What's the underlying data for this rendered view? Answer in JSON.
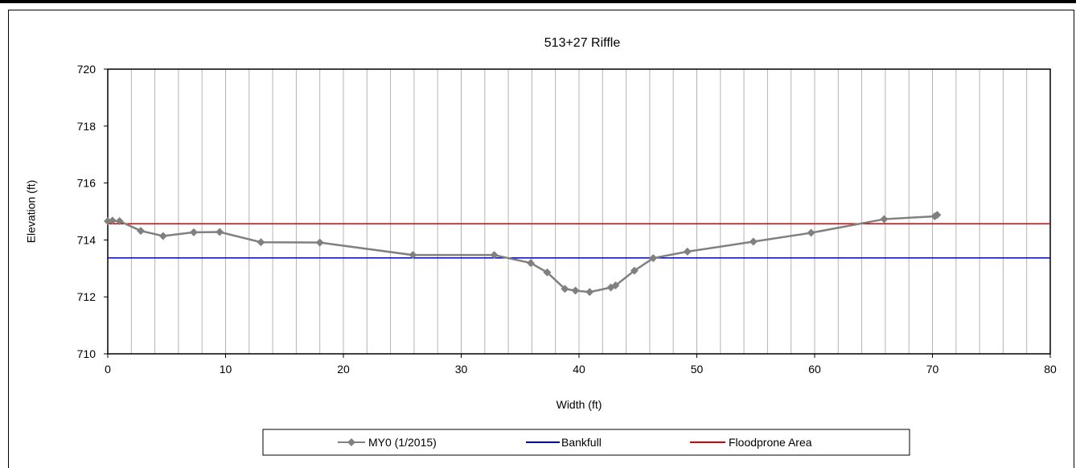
{
  "chart_data": {
    "type": "line",
    "title": "513+27 Riffle",
    "xlabel": "Width (ft)",
    "ylabel": "Elevation (ft)",
    "xlim": [
      0,
      80
    ],
    "ylim": [
      710,
      720
    ],
    "xticks": [
      0,
      10,
      20,
      30,
      40,
      50,
      60,
      70,
      80
    ],
    "yticks": [
      710,
      712,
      714,
      716,
      718,
      720
    ],
    "x_minor_gridlines": [
      2,
      4,
      6,
      8,
      12,
      14,
      16,
      18,
      22,
      24,
      26,
      28,
      32,
      34,
      36,
      38,
      42,
      44,
      46,
      48,
      52,
      54,
      56,
      58,
      62,
      64,
      66,
      68,
      72,
      74,
      76,
      78
    ],
    "grid": "vertical",
    "legend_position": "bottom",
    "series": [
      {
        "name": "MY0 (1/2015)",
        "color": "#808080",
        "marker": "diamond",
        "x": [
          0,
          0.4,
          1.0,
          2.8,
          4.7,
          7.3,
          9.5,
          13.0,
          18.0,
          25.9,
          32.8,
          35.9,
          37.3,
          38.8,
          39.7,
          40.9,
          42.7,
          43.1,
          44.7,
          46.3,
          49.2,
          54.8,
          59.7,
          65.9,
          70.2,
          70.4
        ],
        "y": [
          714.66,
          714.68,
          714.66,
          714.32,
          714.14,
          714.27,
          714.28,
          713.92,
          713.91,
          713.47,
          713.47,
          713.19,
          712.86,
          712.28,
          712.22,
          712.17,
          712.33,
          712.4,
          712.92,
          713.36,
          713.59,
          713.94,
          714.25,
          714.73,
          714.83,
          714.88
        ]
      },
      {
        "name": "Bankfull",
        "color": "#0000cc",
        "type": "hline",
        "y": 713.37
      },
      {
        "name": "Floodprone Area",
        "color": "#dd0000",
        "type": "hline",
        "y": 714.57
      }
    ]
  }
}
